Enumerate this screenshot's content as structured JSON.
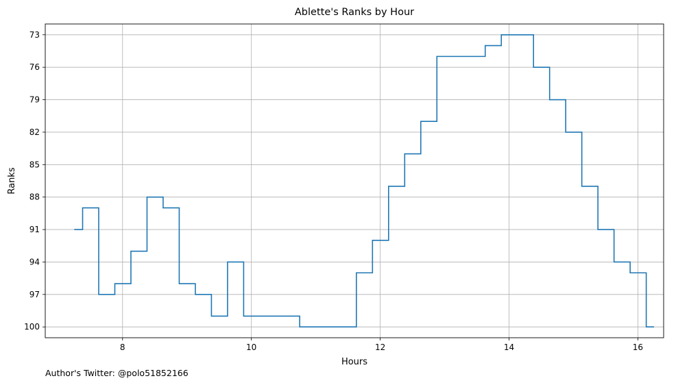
{
  "footer_text": "Author's Twitter: @polo51852166",
  "chart_data": {
    "type": "line",
    "step": "post",
    "title": "Ablette's Ranks by Hour",
    "xlabel": "Hours",
    "ylabel": "Ranks",
    "xlim": [
      6.8,
      16.4
    ],
    "ylim": [
      101.0,
      72.0
    ],
    "y_inverted": true,
    "xticks": [
      8,
      10,
      12,
      14,
      16
    ],
    "yticks": [
      73,
      76,
      79,
      82,
      85,
      88,
      91,
      94,
      97,
      100
    ],
    "grid": true,
    "color": "#1f77b4",
    "series": [
      {
        "x": [
          7.25,
          7.38,
          7.63,
          7.88,
          8.13,
          8.38,
          8.63,
          8.88,
          9.13,
          9.38,
          9.63,
          9.88,
          10.75,
          11.63,
          11.88,
          12.13,
          12.38,
          12.63,
          12.88,
          13.63,
          13.88,
          14.38,
          14.63,
          14.88,
          15.13,
          15.38,
          15.63,
          15.88,
          16.13,
          16.25
        ],
        "y": [
          91,
          89,
          97,
          96,
          93,
          88,
          89,
          96,
          97,
          99,
          94,
          99,
          100,
          95,
          92,
          87,
          84,
          81,
          75,
          74,
          73,
          76,
          79,
          82,
          87,
          91,
          94,
          95,
          100,
          100
        ]
      }
    ]
  }
}
